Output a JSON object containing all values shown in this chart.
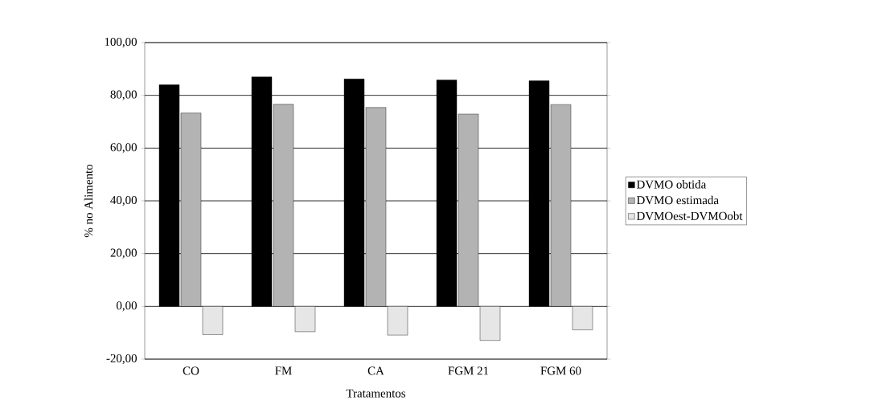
{
  "chart_data": {
    "type": "bar",
    "xlabel": "Tratamentos",
    "ylabel": "% no Alimento",
    "categories": [
      "CO",
      "FM",
      "CA",
      "FGM 21",
      "FGM 60"
    ],
    "series": [
      {
        "name": "DVMO obtida",
        "color": "#000000",
        "values": [
          84.0,
          87.0,
          86.2,
          85.8,
          85.5
        ]
      },
      {
        "name": "DVMO estimada",
        "color": "#b3b3b3",
        "values": [
          73.3,
          76.6,
          75.4,
          72.9,
          76.5
        ]
      },
      {
        "name": "DVMOest-DVMOobt",
        "color": "#e6e6e6",
        "values": [
          -10.7,
          -9.6,
          -10.9,
          -12.9,
          -8.9
        ]
      }
    ],
    "ylim": [
      -20,
      100
    ],
    "yticks": [
      {
        "value": -20,
        "label": "-20,00"
      },
      {
        "value": 0,
        "label": "0,00"
      },
      {
        "value": 20,
        "label": "20,00"
      },
      {
        "value": 40,
        "label": "40,00"
      },
      {
        "value": 60,
        "label": "60,00"
      },
      {
        "value": 80,
        "label": "80,00"
      },
      {
        "value": 100,
        "label": "100,00"
      }
    ],
    "grid": "y",
    "legend": "right"
  }
}
